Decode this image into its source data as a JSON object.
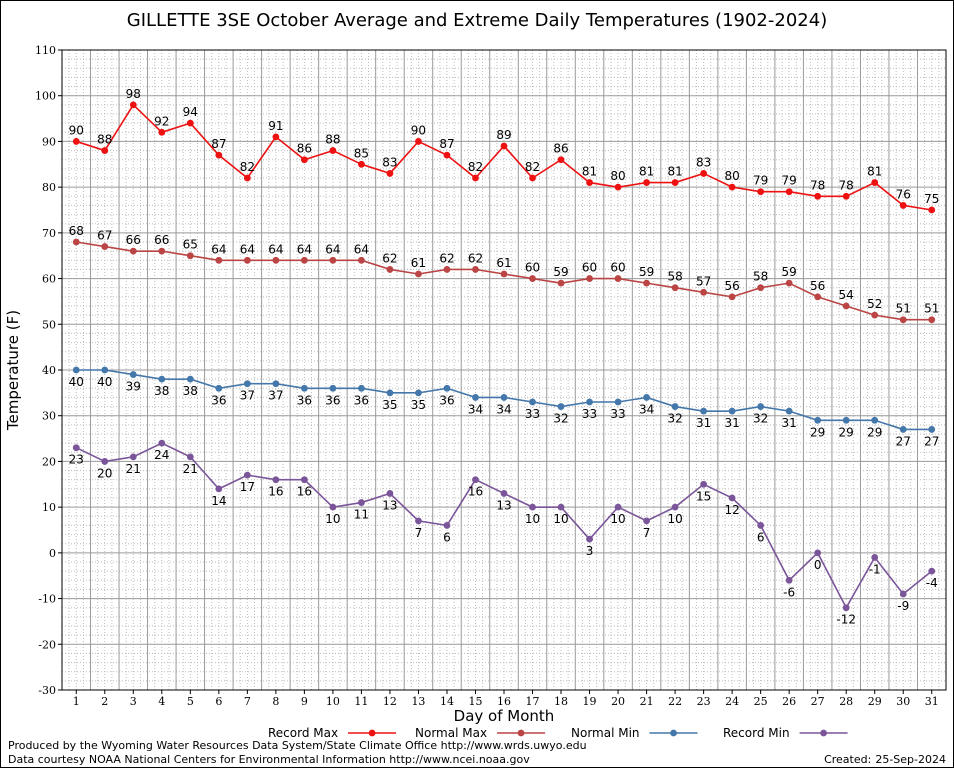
{
  "title": "GILLETTE 3SE October Average and Extreme Daily Temperatures (1902-2024)",
  "footer": {
    "produced_by": "Produced by the Wyoming Water Resources Data System/State Climate Office http://www.wrds.uwyo.edu",
    "courtesy": "Data courtesy NOAA National Centers for Environmental Information http://www.ncei.noaa.gov",
    "created_label": "Created:",
    "created_date": "25-Sep-2024"
  },
  "chart_data": {
    "type": "line",
    "xlabel": "Day of Month",
    "ylabel": "Temperature (F)",
    "ylim": [
      -30,
      110
    ],
    "ytick_step": 10,
    "x": [
      1,
      2,
      3,
      4,
      5,
      6,
      7,
      8,
      9,
      10,
      11,
      12,
      13,
      14,
      15,
      16,
      17,
      18,
      19,
      20,
      21,
      22,
      23,
      24,
      25,
      26,
      27,
      28,
      29,
      30,
      31
    ],
    "grid": true,
    "legend_placement": "bottom",
    "series": [
      {
        "name": "Record Max",
        "color": "#ee1111",
        "values": [
          90,
          88,
          98,
          92,
          94,
          87,
          82,
          91,
          86,
          88,
          85,
          83,
          90,
          87,
          82,
          89,
          82,
          86,
          81,
          80,
          81,
          81,
          83,
          80,
          79,
          79,
          78,
          78,
          81,
          76,
          75
        ]
      },
      {
        "name": "Normal Max",
        "color": "#bb4444",
        "values": [
          68,
          67,
          66,
          66,
          65,
          64,
          64,
          64,
          64,
          64,
          64,
          62,
          61,
          62,
          62,
          61,
          60,
          59,
          60,
          60,
          59,
          58,
          57,
          56,
          58,
          59,
          56,
          54,
          52,
          51,
          51
        ]
      },
      {
        "name": "Normal Min",
        "color": "#4477aa",
        "values": [
          40,
          40,
          39,
          38,
          38,
          36,
          37,
          37,
          36,
          36,
          36,
          35,
          35,
          36,
          34,
          34,
          33,
          32,
          33,
          33,
          34,
          32,
          31,
          31,
          32,
          31,
          29,
          29,
          29,
          27,
          27
        ]
      },
      {
        "name": "Record Min",
        "color": "#7a5599",
        "values": [
          23,
          20,
          21,
          24,
          21,
          14,
          17,
          16,
          16,
          10,
          11,
          13,
          7,
          6,
          16,
          13,
          10,
          10,
          3,
          10,
          7,
          10,
          15,
          12,
          6,
          -6,
          0,
          -12,
          -1,
          -9,
          -4
        ]
      }
    ]
  }
}
